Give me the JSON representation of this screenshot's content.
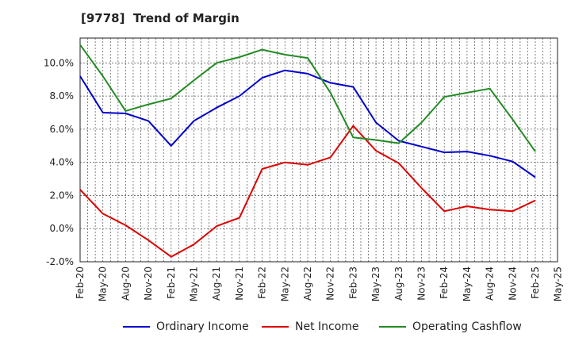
{
  "title": "[9778]  Trend of Margin",
  "chart_data": {
    "type": "line",
    "title": "[9778]  Trend of Margin",
    "xlabel": "",
    "ylabel": "",
    "categories": [
      "Feb-20",
      "May-20",
      "Aug-20",
      "Nov-20",
      "Feb-21",
      "May-21",
      "Aug-21",
      "Nov-21",
      "Feb-22",
      "May-22",
      "Aug-22",
      "Nov-22",
      "Feb-23",
      "May-23",
      "Aug-23",
      "Nov-23",
      "Feb-24",
      "May-24",
      "Aug-24",
      "Nov-24",
      "Feb-25",
      "May-25"
    ],
    "ylim": [
      -2.0,
      11.5
    ],
    "yticks": [
      -2.0,
      0.0,
      2.0,
      4.0,
      6.0,
      8.0,
      10.0
    ],
    "ytick_labels": [
      "-2.0%",
      "0.0%",
      "2.0%",
      "4.0%",
      "6.0%",
      "8.0%",
      "10.0%"
    ],
    "grid": true,
    "legend_position": "bottom",
    "series": [
      {
        "name": "Ordinary Income",
        "color": "#0000cc",
        "values": [
          9.2,
          7.0,
          6.95,
          6.5,
          5.0,
          6.5,
          7.3,
          8.0,
          9.1,
          9.55,
          9.35,
          8.8,
          8.55,
          6.4,
          5.3,
          4.95,
          4.6,
          4.65,
          4.4,
          4.05,
          3.1,
          null
        ]
      },
      {
        "name": "Net Income",
        "color": "#dd0000",
        "values": [
          2.35,
          0.9,
          0.2,
          -0.7,
          -1.7,
          -0.95,
          0.15,
          0.65,
          3.6,
          4.0,
          3.85,
          4.3,
          6.2,
          4.7,
          3.95,
          2.45,
          1.05,
          1.35,
          1.15,
          1.05,
          1.7,
          null
        ]
      },
      {
        "name": "Operating Cashflow",
        "color": "#228b22",
        "values": [
          11.1,
          9.2,
          7.1,
          7.5,
          7.85,
          8.95,
          10.0,
          10.35,
          10.8,
          10.5,
          10.3,
          8.2,
          5.5,
          5.35,
          5.15,
          6.4,
          7.95,
          8.2,
          8.45,
          6.6,
          4.65,
          null
        ]
      }
    ]
  }
}
